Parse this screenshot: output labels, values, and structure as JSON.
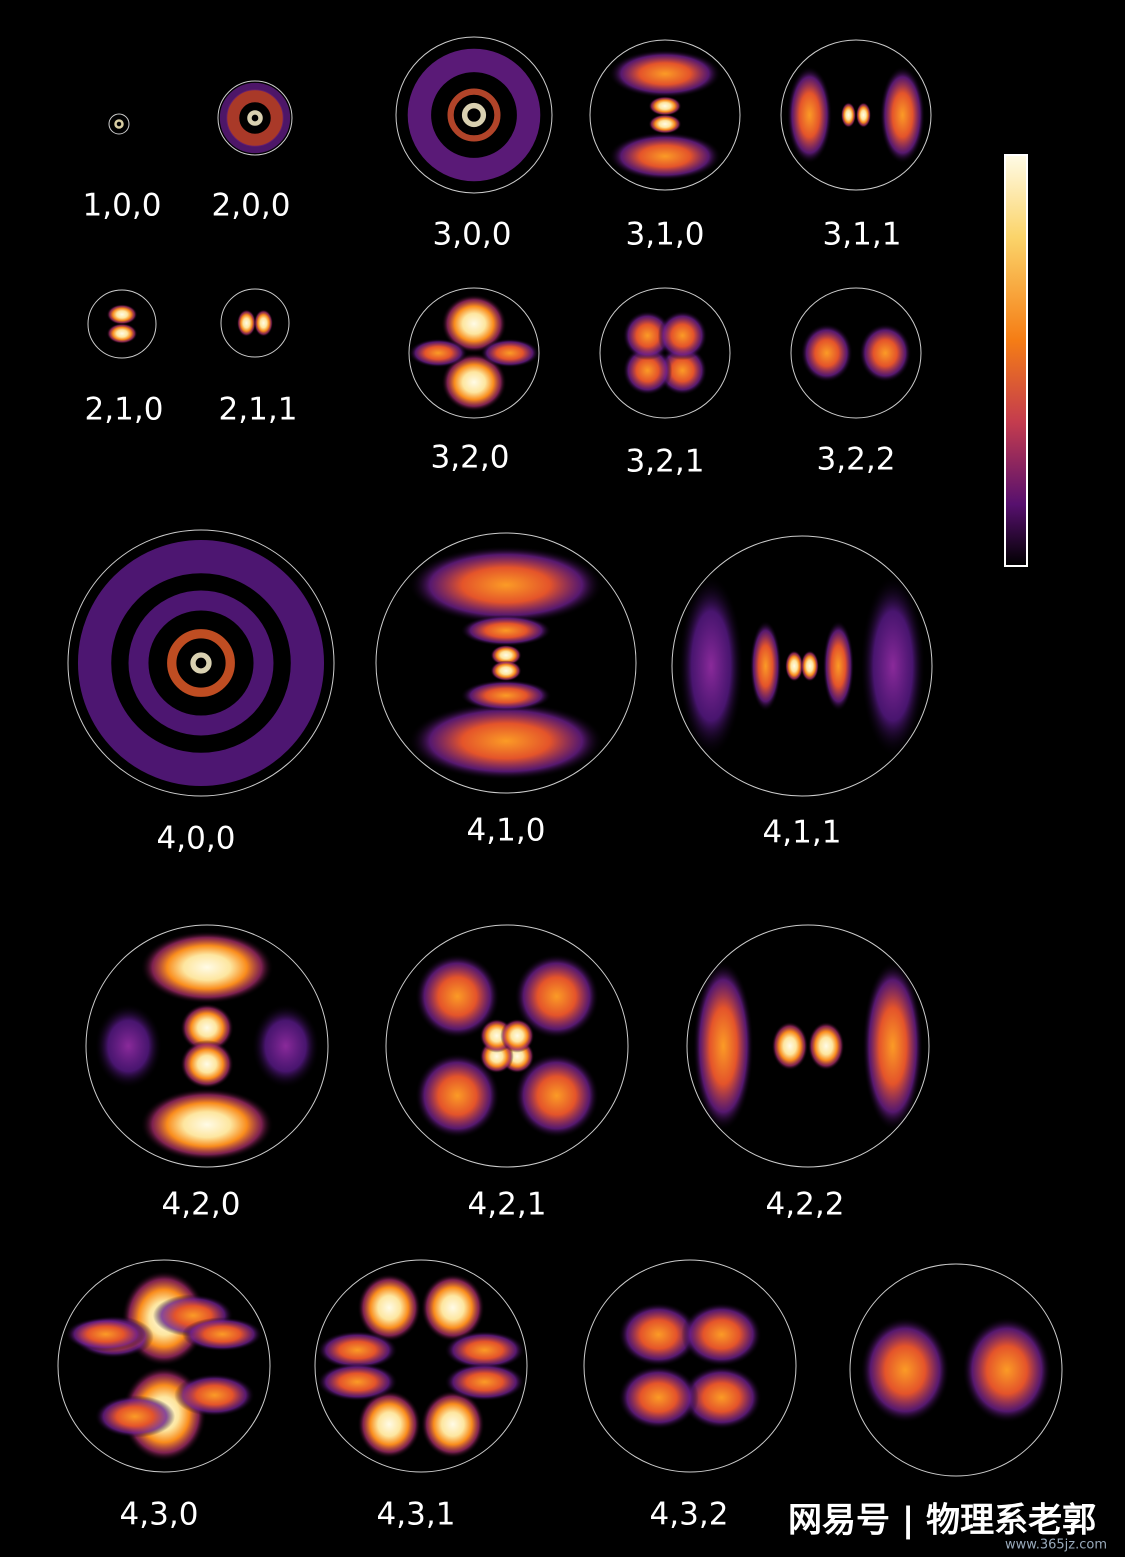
{
  "orbitals": [
    {
      "label": "1,0,0"
    },
    {
      "label": "2,0,0"
    },
    {
      "label": "3,0,0"
    },
    {
      "label": "3,1,0"
    },
    {
      "label": "3,1,1"
    },
    {
      "label": "2,1,0"
    },
    {
      "label": "2,1,1"
    },
    {
      "label": "3,2,0"
    },
    {
      "label": "3,2,1"
    },
    {
      "label": "3,2,2"
    },
    {
      "label": "4,0,0"
    },
    {
      "label": "4,1,0"
    },
    {
      "label": "4,1,1"
    },
    {
      "label": "4,2,0"
    },
    {
      "label": "4,2,1"
    },
    {
      "label": "4,2,2"
    },
    {
      "label": "4,3,0"
    },
    {
      "label": "4,3,1"
    },
    {
      "label": "4,3,2"
    },
    {
      "label": null
    }
  ],
  "watermark": {
    "text": "网易号 | 物理系老郭",
    "url": "www.365jz.com"
  }
}
